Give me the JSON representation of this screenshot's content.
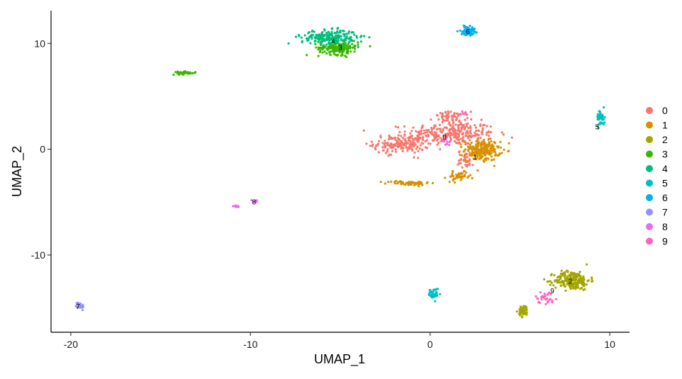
{
  "chart_data": {
    "type": "scatter",
    "xlabel": "UMAP_1",
    "ylabel": "UMAP_2",
    "xlim": [
      -21.1,
      11.1
    ],
    "ylim": [
      -17.3,
      13.1
    ],
    "x_ticks": [
      -20,
      -10,
      0,
      10
    ],
    "x_tick_labels": [
      "-20",
      "-10",
      "0",
      "10"
    ],
    "y_ticks": [
      -10,
      0,
      10
    ],
    "y_tick_labels": [
      "-10",
      "0",
      "10"
    ],
    "grid": false,
    "legend_position": "right",
    "series": [
      {
        "name": "0",
        "color": "#F8766D",
        "label_text": "0",
        "label_at": [
          0.8,
          1.1
        ],
        "blobs": [
          [
            1.2,
            1.5,
            2.2,
            1.0,
            260
          ],
          [
            -1.6,
            0.5,
            1.4,
            0.8,
            180
          ],
          [
            1.2,
            3.0,
            0.9,
            0.5,
            60
          ],
          [
            2.0,
            -1.0,
            0.4,
            0.8,
            40
          ]
        ]
      },
      {
        "name": "1",
        "color": "#D89000",
        "label_text": "1",
        "label_at": [
          2.5,
          -0.8
        ],
        "blobs": [
          [
            2.9,
            -0.1,
            0.9,
            0.9,
            220
          ],
          [
            1.6,
            -2.6,
            0.6,
            0.4,
            40
          ],
          [
            -1.2,
            -3.2,
            1.1,
            0.2,
            60
          ]
        ]
      },
      {
        "name": "2",
        "color": "#A3A500",
        "label_text": "2",
        "label_at": [
          7.8,
          -12.5
        ],
        "blobs": [
          [
            7.9,
            -12.4,
            0.9,
            0.8,
            220
          ],
          [
            5.2,
            -15.3,
            0.25,
            0.5,
            50
          ]
        ]
      },
      {
        "name": "3",
        "color": "#39B600",
        "label_text": "3",
        "label_at": [
          -5.0,
          9.6
        ],
        "blobs": [
          [
            -5.1,
            9.6,
            1.0,
            0.6,
            170
          ],
          [
            -13.7,
            7.2,
            0.6,
            0.12,
            40
          ]
        ]
      },
      {
        "name": "4",
        "color": "#00BF7D",
        "label_text": "4",
        "label_at": [
          -5.4,
          10.2
        ],
        "blobs": [
          [
            -5.6,
            10.6,
            1.4,
            0.6,
            220
          ]
        ]
      },
      {
        "name": "5",
        "color": "#00BFC4",
        "label_text": "5",
        "label_at": [
          9.3,
          2.1
        ],
        "blobs": [
          [
            9.5,
            3.0,
            0.2,
            0.7,
            50
          ],
          [
            0.2,
            -13.7,
            0.25,
            0.5,
            40
          ]
        ]
      },
      {
        "name": "6",
        "color": "#00B0F6",
        "label_text": "6",
        "label_at": [
          2.1,
          11.1
        ],
        "blobs": [
          [
            2.1,
            11.2,
            0.35,
            0.35,
            80
          ]
        ]
      },
      {
        "name": "7",
        "color": "#9590FF",
        "label_text": "7",
        "label_at": [
          -19.6,
          -14.9
        ],
        "blobs": [
          [
            -19.5,
            -14.8,
            0.2,
            0.3,
            30
          ]
        ]
      },
      {
        "name": "8",
        "color": "#E76BF3",
        "label_text": "8",
        "label_at": [
          -9.8,
          -5.0
        ],
        "blobs": [
          [
            -10.8,
            -5.4,
            0.15,
            0.08,
            10
          ],
          [
            -9.8,
            -4.9,
            0.2,
            0.1,
            10
          ],
          [
            0.9,
            0.6,
            0.2,
            0.3,
            10
          ]
        ]
      },
      {
        "name": "9",
        "color": "#FF62BC",
        "label_text": "9",
        "label_at": [
          6.8,
          -13.4
        ],
        "blobs": [
          [
            6.4,
            -14.0,
            0.5,
            0.5,
            30
          ],
          [
            1.8,
            3.4,
            0.2,
            0.2,
            6
          ]
        ]
      }
    ]
  }
}
